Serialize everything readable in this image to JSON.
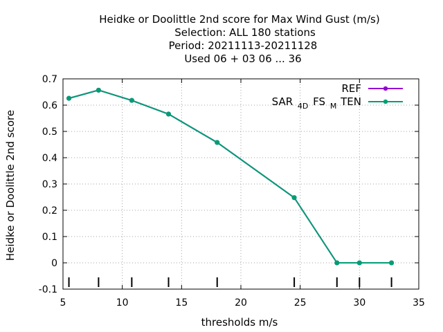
{
  "chart_data": {
    "type": "line",
    "title_lines": [
      "Heidke or Doolittle 2nd score  for Max Wind Gust (m/s)",
      "Selection: ALL    180 stations",
      "Period: 20211113-20211128",
      "Used  06 + 03 06 ... 36"
    ],
    "xlabel": "thresholds m/s",
    "ylabel": "Heidke or Doolittle 2nd score",
    "xlim": [
      5,
      35
    ],
    "ylim": [
      -0.1,
      0.7
    ],
    "x_ticks": [
      5,
      10,
      15,
      20,
      25,
      30,
      35
    ],
    "x_tick_labels": [
      "5",
      "10",
      "15",
      "20",
      "25",
      "30",
      "35"
    ],
    "y_ticks": [
      -0.1,
      0,
      0.1,
      0.2,
      0.3,
      0.4,
      0.5,
      0.6,
      0.7
    ],
    "y_tick_labels": [
      "-0.1",
      "0",
      "0.1",
      "0.2",
      "0.3",
      "0.4",
      "0.5",
      "0.6",
      "0.7"
    ],
    "grid": true,
    "legend_position": "top-right",
    "threshold_marks": [
      5.5,
      8,
      10.8,
      13.9,
      18,
      24.5,
      28.1,
      30,
      32.7
    ],
    "series": [
      {
        "name": "REF",
        "color": "#9400d3",
        "x": [
          5.5,
          8,
          10.8,
          13.9,
          18,
          24.5,
          28.1,
          30,
          32.7
        ],
        "y": [
          0.626,
          0.657,
          0.618,
          0.566,
          0.458,
          0.248,
          0,
          0,
          0
        ]
      },
      {
        "name_parts": [
          "SAR",
          "4D",
          "FS",
          "M",
          "TEN"
        ],
        "color": "#009e73",
        "x": [
          5.5,
          8,
          10.8,
          13.9,
          18,
          24.5,
          28.1,
          30,
          32.7
        ],
        "y": [
          0.626,
          0.657,
          0.618,
          0.566,
          0.458,
          0.248,
          0,
          0,
          0
        ]
      }
    ]
  }
}
